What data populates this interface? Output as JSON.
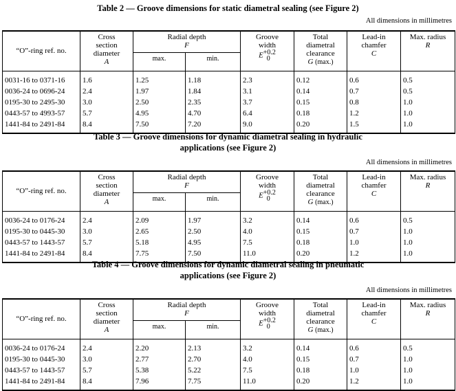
{
  "header_labels": {
    "ref": "“O”-ring ref. no.",
    "cross_1": "Cross",
    "cross_2": "section",
    "cross_3": "diameter",
    "cross_sym": "A",
    "radial": "Radial depth",
    "radial_sym": "F",
    "max": "max.",
    "min": "min.",
    "groove_1": "Groove",
    "groove_2": "width",
    "groove_sym": "E",
    "groove_tol_upper": "+0.2",
    "groove_tol_lower": "0",
    "clear_1": "Total",
    "clear_2": "diametral",
    "clear_3": "clearance",
    "clear_sym": "G",
    "clear_suffix": "(max.)",
    "lead_1": "Lead-in",
    "lead_2": "chamfer",
    "lead_sym": "C",
    "radius_1": "Max. radius",
    "radius_sym": "R"
  },
  "tables": [
    {
      "title": "Table 2 — Groove dimensions for static diametral sealing (see Figure 2)",
      "units": "All dimensions in millimetres",
      "rows": [
        [
          "0031-16 to 0371-16",
          "1.6",
          "1.25",
          "1.18",
          "2.3",
          "0.12",
          "0.6",
          "0.5"
        ],
        [
          "0036-24 to 0696-24",
          "2.4",
          "1.97",
          "1.84",
          "3.1",
          "0.14",
          "0.7",
          "0.5"
        ],
        [
          "0195-30 to 2495-30",
          "3.0",
          "2.50",
          "2.35",
          "3.7",
          "0.15",
          "0.8",
          "1.0"
        ],
        [
          "0443-57 to 4993-57",
          "5.7",
          "4.95",
          "4.70",
          "6.4",
          "0.18",
          "1.2",
          "1.0"
        ],
        [
          "1441-84 to 2491-84",
          "8.4",
          "7.50",
          "7.20",
          "9.0",
          "0.20",
          "1.5",
          "1.0"
        ]
      ]
    },
    {
      "title_line1": "Table 3 — Groove dimensions for dynamic diametral sealing in hydraulic",
      "title_line2": "applications (see Figure 2)",
      "units": "All dimensions in millimetres",
      "rows": [
        [
          "0036-24 to 0176-24",
          "2.4",
          "2.09",
          "1.97",
          "3.2",
          "0.14",
          "0.6",
          "0.5"
        ],
        [
          "0195-30 to 0445-30",
          "3.0",
          "2.65",
          "2.50",
          "4.0",
          "0.15",
          "0.7",
          "1.0"
        ],
        [
          "0443-57 to 1443-57",
          "5.7",
          "5.18",
          "4.95",
          "7.5",
          "0.18",
          "1.0",
          "1.0"
        ],
        [
          "1441-84 to 2491-84",
          "8.4",
          "7.75",
          "7.50",
          "11.0",
          "0.20",
          "1.2",
          "1.0"
        ]
      ]
    },
    {
      "title_line1": "Table 4 — Groove dimensions for dynamic diametral sealing in pneumatic",
      "title_line2": "applications (see Figure 2)",
      "units": "All dimensions in millimetres",
      "rows": [
        [
          "0036-24 to 0176-24",
          "2.4",
          "2.20",
          "2.13",
          "3.2",
          "0.14",
          "0.6",
          "0.5"
        ],
        [
          "0195-30 to 0445-30",
          "3.0",
          "2.77",
          "2.70",
          "4.0",
          "0.15",
          "0.7",
          "1.0"
        ],
        [
          "0443-57 to 1443-57",
          "5.7",
          "5.38",
          "5.22",
          "7.5",
          "0.18",
          "1.0",
          "1.0"
        ],
        [
          "1441-84 to 2491-84",
          "8.4",
          "7.96",
          "7.75",
          "11.0",
          "0.20",
          "1.2",
          "1.0"
        ]
      ]
    }
  ]
}
